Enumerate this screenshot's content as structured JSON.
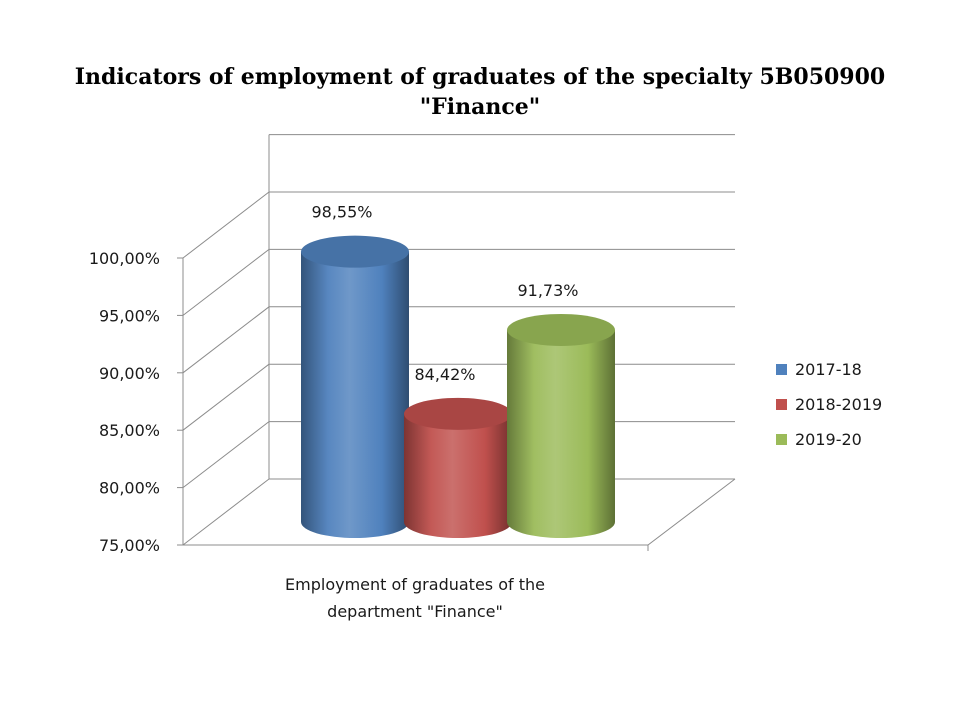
{
  "chart_data": {
    "type": "bar",
    "style": "3d-cylinder",
    "title_lines": [
      "Indicators of employment of graduates of the specialty 5B050900",
      "\"Finance\""
    ],
    "category_lines": [
      "Employment of graduates of the",
      "department \"Finance\""
    ],
    "categories": [
      "Employment of graduates of the department \"Finance\""
    ],
    "series": [
      {
        "name": "2017-18",
        "values": [
          98.55
        ],
        "label": "98,55%",
        "color": "#4f81bd"
      },
      {
        "name": "2018-2019",
        "values": [
          84.42
        ],
        "label": "84,42%",
        "color": "#c0504d"
      },
      {
        "name": "2019-20",
        "values": [
          91.73
        ],
        "label": "91,73%",
        "color": "#9bbb59"
      }
    ],
    "ylim": [
      75,
      100
    ],
    "ytick_labels": [
      "75,00%",
      "80,00%",
      "85,00%",
      "90,00%",
      "95,00%",
      "100,00%"
    ],
    "grid": true,
    "legend_position": "right"
  }
}
